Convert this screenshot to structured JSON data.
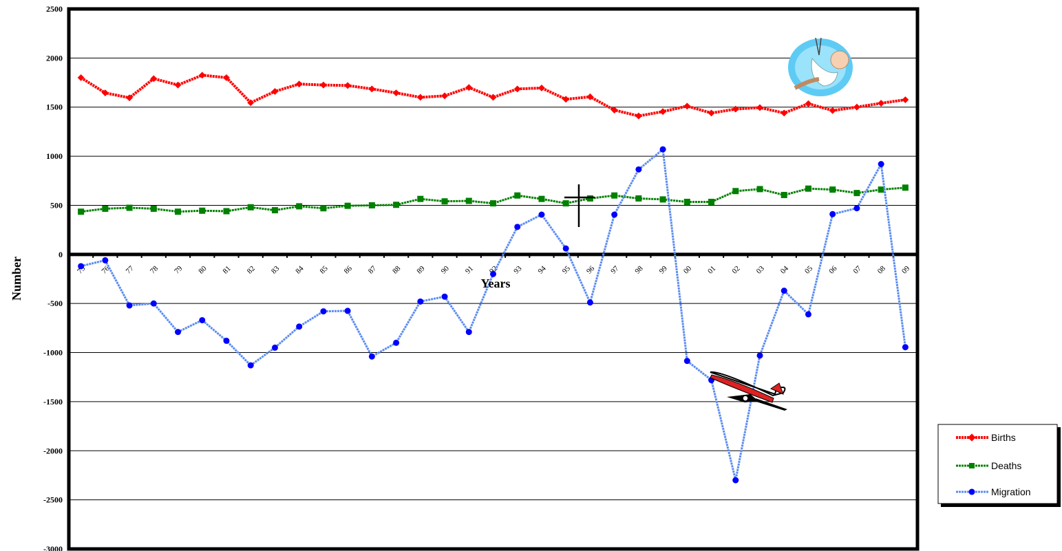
{
  "chart_data": {
    "type": "line",
    "title": "",
    "xlabel": "Years",
    "ylabel": "Number",
    "ylim": [
      -3000,
      2500
    ],
    "ytick_step": 500,
    "grid": true,
    "legend_position": "bottom-right",
    "categories": [
      "75",
      "76",
      "77",
      "78",
      "79",
      "80",
      "81",
      "82",
      "83",
      "84",
      "85",
      "86",
      "87",
      "88",
      "89",
      "90",
      "91",
      "92",
      "93",
      "94",
      "95",
      "96",
      "97",
      "98",
      "99",
      "00",
      "01",
      "02",
      "03",
      "04",
      "05",
      "06",
      "07",
      "08",
      "09"
    ],
    "series": [
      {
        "name": "Births",
        "color": "#ff0000",
        "marker": "diamond",
        "values": [
          1800,
          1645,
          1595,
          1790,
          1725,
          1825,
          1800,
          1545,
          1660,
          1735,
          1725,
          1720,
          1685,
          1645,
          1600,
          1615,
          1700,
          1600,
          1685,
          1695,
          1580,
          1605,
          1470,
          1410,
          1455,
          1510,
          1440,
          1480,
          1495,
          1440,
          1535,
          1465,
          1500,
          1540,
          1575
        ]
      },
      {
        "name": "Deaths",
        "color": "#008000",
        "marker": "square",
        "values": [
          435,
          465,
          475,
          465,
          435,
          445,
          440,
          480,
          450,
          490,
          470,
          495,
          500,
          505,
          565,
          540,
          545,
          520,
          600,
          565,
          520,
          570,
          600,
          570,
          560,
          535,
          535,
          645,
          665,
          605,
          670,
          660,
          625,
          660,
          680
        ]
      },
      {
        "name": "Migration",
        "color": "#0000ff",
        "line_color": "#5b8cf0",
        "marker": "circle",
        "values": [
          -120,
          -60,
          -520,
          -500,
          -790,
          -670,
          -880,
          -1130,
          -950,
          -735,
          -580,
          -575,
          -1040,
          -900,
          -480,
          -430,
          -790,
          -200,
          280,
          405,
          60,
          -490,
          405,
          865,
          1070,
          -1085,
          -1280,
          -2300,
          -1030,
          -370,
          -610,
          410,
          470,
          920,
          -945
        ]
      }
    ],
    "annotations": [
      "baby-clipart",
      "airplane-clipart",
      "cross-mark"
    ]
  }
}
